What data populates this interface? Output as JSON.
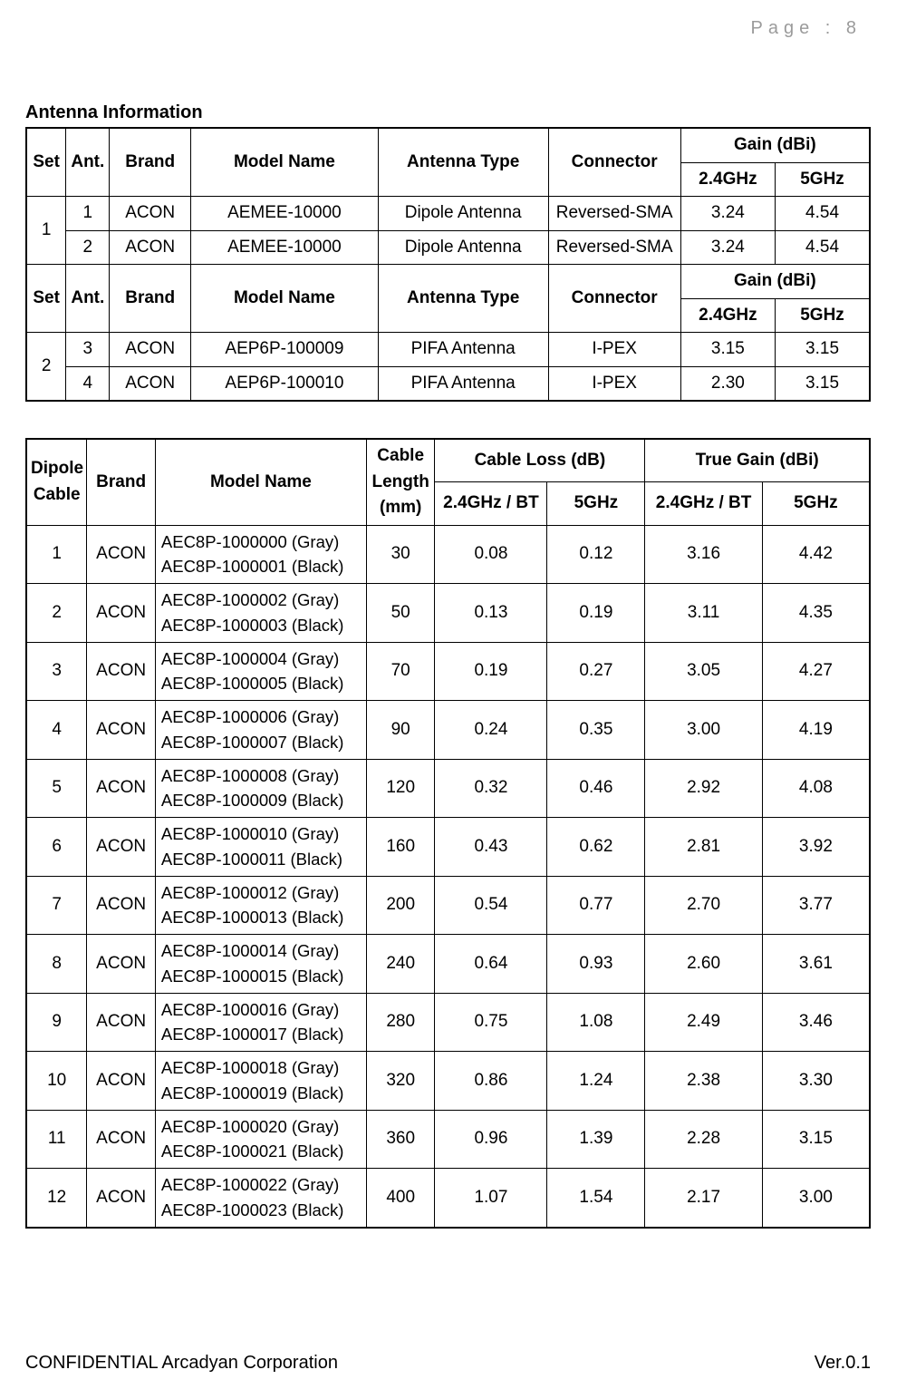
{
  "page": {
    "pageNumberLabel": "Page : 8",
    "footerLeft": "CONFIDENTIAL Arcadyan Corporation",
    "footerRight": "Ver.0.1"
  },
  "section": {
    "title": "Antenna Information"
  },
  "table1": {
    "headers": {
      "set": "Set",
      "ant": "Ant.",
      "brand": "Brand",
      "model": "Model Name",
      "antennaType": "Antenna Type",
      "connector": "Connector",
      "gain": "Gain (dBi)",
      "g24": "2.4GHz",
      "g5": "5GHz"
    },
    "groups": [
      {
        "set": "1",
        "rows": [
          {
            "ant": "1",
            "brand": "ACON",
            "model": "AEMEE-10000",
            "type": "Dipole Antenna",
            "connector": "Reversed-SMA",
            "g24": "3.24",
            "g5": "4.54"
          },
          {
            "ant": "2",
            "brand": "ACON",
            "model": "AEMEE-10000",
            "type": "Dipole Antenna",
            "connector": "Reversed-SMA",
            "g24": "3.24",
            "g5": "4.54"
          }
        ]
      },
      {
        "set": "2",
        "rows": [
          {
            "ant": "3",
            "brand": "ACON",
            "model": "AEP6P-100009",
            "type": "PIFA Antenna",
            "connector": "I-PEX",
            "g24": "3.15",
            "g5": "3.15"
          },
          {
            "ant": "4",
            "brand": "ACON",
            "model": "AEP6P-100010",
            "type": "PIFA Antenna",
            "connector": "I-PEX",
            "g24": "2.30",
            "g5": "3.15"
          }
        ]
      }
    ]
  },
  "table2": {
    "headers": {
      "dipole": "Dipole Cable",
      "brand": "Brand",
      "model": "Model Name",
      "cableLen": "Cable Length (mm)",
      "cableLoss": "Cable Loss (dB)",
      "trueGain": "True Gain (dBi)",
      "b24": "2.4GHz / BT",
      "b5": "5GHz"
    },
    "rows": [
      {
        "idx": "1",
        "brand": "ACON",
        "model1": "AEC8P-1000000 (Gray)",
        "model2": "AEC8P-1000001 (Black)",
        "len": "30",
        "cl24": "0.08",
        "cl5": "0.12",
        "tg24": "3.16",
        "tg5": "4.42"
      },
      {
        "idx": "2",
        "brand": "ACON",
        "model1": "AEC8P-1000002 (Gray)",
        "model2": "AEC8P-1000003 (Black)",
        "len": "50",
        "cl24": "0.13",
        "cl5": "0.19",
        "tg24": "3.11",
        "tg5": "4.35"
      },
      {
        "idx": "3",
        "brand": "ACON",
        "model1": "AEC8P-1000004 (Gray)",
        "model2": "AEC8P-1000005 (Black)",
        "len": "70",
        "cl24": "0.19",
        "cl5": "0.27",
        "tg24": "3.05",
        "tg5": "4.27"
      },
      {
        "idx": "4",
        "brand": "ACON",
        "model1": "AEC8P-1000006 (Gray)",
        "model2": "AEC8P-1000007 (Black)",
        "len": "90",
        "cl24": "0.24",
        "cl5": "0.35",
        "tg24": "3.00",
        "tg5": "4.19"
      },
      {
        "idx": "5",
        "brand": "ACON",
        "model1": "AEC8P-1000008 (Gray)",
        "model2": "AEC8P-1000009 (Black)",
        "len": "120",
        "cl24": "0.32",
        "cl5": "0.46",
        "tg24": "2.92",
        "tg5": "4.08"
      },
      {
        "idx": "6",
        "brand": "ACON",
        "model1": "AEC8P-1000010 (Gray)",
        "model2": "AEC8P-1000011 (Black)",
        "len": "160",
        "cl24": "0.43",
        "cl5": "0.62",
        "tg24": "2.81",
        "tg5": "3.92"
      },
      {
        "idx": "7",
        "brand": "ACON",
        "model1": "AEC8P-1000012 (Gray)",
        "model2": "AEC8P-1000013 (Black)",
        "len": "200",
        "cl24": "0.54",
        "cl5": "0.77",
        "tg24": "2.70",
        "tg5": "3.77"
      },
      {
        "idx": "8",
        "brand": "ACON",
        "model1": "AEC8P-1000014 (Gray)",
        "model2": "AEC8P-1000015 (Black)",
        "len": "240",
        "cl24": "0.64",
        "cl5": "0.93",
        "tg24": "2.60",
        "tg5": "3.61"
      },
      {
        "idx": "9",
        "brand": "ACON",
        "model1": "AEC8P-1000016 (Gray)",
        "model2": "AEC8P-1000017 (Black)",
        "len": "280",
        "cl24": "0.75",
        "cl5": "1.08",
        "tg24": "2.49",
        "tg5": "3.46"
      },
      {
        "idx": "10",
        "brand": "ACON",
        "model1": "AEC8P-1000018 (Gray)",
        "model2": "AEC8P-1000019 (Black)",
        "len": "320",
        "cl24": "0.86",
        "cl5": "1.24",
        "tg24": "2.38",
        "tg5": "3.30"
      },
      {
        "idx": "11",
        "brand": "ACON",
        "model1": "AEC8P-1000020 (Gray)",
        "model2": "AEC8P-1000021 (Black)",
        "len": "360",
        "cl24": "0.96",
        "cl5": "1.39",
        "tg24": "2.28",
        "tg5": "3.15"
      },
      {
        "idx": "12",
        "brand": "ACON",
        "model1": "AEC8P-1000022 (Gray)",
        "model2": "AEC8P-1000023 (Black)",
        "len": "400",
        "cl24": "1.07",
        "cl5": "1.54",
        "tg24": "2.17",
        "tg5": "3.00"
      }
    ]
  }
}
